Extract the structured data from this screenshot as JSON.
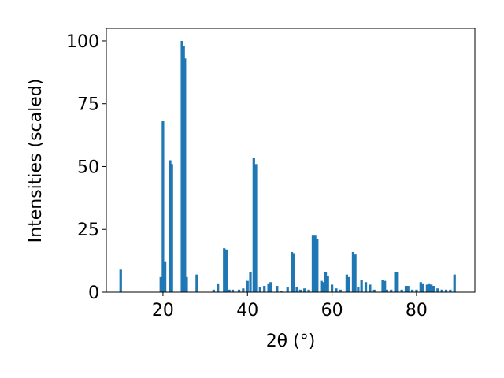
{
  "chart_data": {
    "type": "bar",
    "x_label": "2θ (°)",
    "y_label": "Intensities (scaled)",
    "color": "#1f77b4",
    "x": [
      10,
      19.5,
      20,
      20.5,
      21.7,
      22.1,
      24.5,
      24.9,
      25.2,
      25.6,
      28,
      32,
      33,
      34.5,
      35,
      35.7,
      36.5,
      38,
      39,
      40,
      40.7,
      41.5,
      42,
      43,
      44,
      45,
      45.5,
      47,
      48,
      49.5,
      50.5,
      51,
      51.7,
      52.5,
      53.5,
      54.5,
      55.5,
      56,
      56.5,
      57.5,
      58,
      58.5,
      59,
      60,
      61,
      62,
      63.5,
      64,
      65,
      65.5,
      66.2,
      67,
      68,
      69,
      70,
      72,
      72.5,
      73,
      74,
      75,
      75.5,
      76.5,
      77.5,
      78,
      79,
      80,
      81,
      81.5,
      82.5,
      83,
      83.5,
      84,
      85,
      86,
      87,
      88,
      89
    ],
    "values": [
      9,
      6,
      68,
      12,
      52.5,
      51,
      100,
      98,
      93,
      6,
      7,
      1,
      3.5,
      17.5,
      17,
      1,
      1,
      1,
      1.5,
      4.5,
      8,
      53.5,
      51,
      2,
      2.5,
      3.5,
      4,
      2.5,
      0.5,
      2,
      16,
      15.5,
      2,
      1,
      1.5,
      1,
      22.5,
      22.5,
      21,
      4.5,
      4,
      8,
      6.5,
      3,
      1.5,
      1,
      7,
      6,
      16,
      15,
      2,
      5,
      4,
      3,
      1,
      5,
      4.5,
      1,
      1,
      8,
      8,
      1,
      2.5,
      2.5,
      1,
      1,
      4,
      3.5,
      3,
      3.5,
      3,
      2.5,
      1.5,
      1,
      1,
      1,
      7
    ],
    "xlim": [
      6.6,
      93.8
    ],
    "xticks": [
      20,
      40,
      60,
      80
    ],
    "ylim": [
      0,
      105
    ],
    "yticks": [
      0,
      25,
      50,
      75,
      100
    ]
  }
}
